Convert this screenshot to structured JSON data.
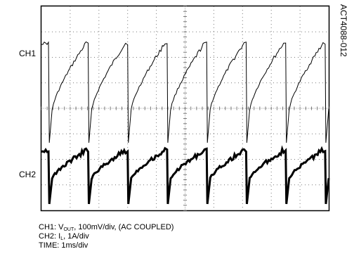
{
  "chart_data": {
    "type": "line",
    "title": "",
    "figure_id": "ACT4088-012",
    "grid": {
      "on": true,
      "divisions_x": 10,
      "divisions_y": 8,
      "style": "dotted"
    },
    "time_per_div_ms": 1,
    "period_ms": 1.375,
    "first_reset_ms": 0.25,
    "series": [
      {
        "name": "CH1",
        "description_units": "divisions (100mV/div, AC coupled)",
        "peak_div": 2.55,
        "trough_div": -1.35,
        "recover_div": -0.05,
        "color": "#000000"
      },
      {
        "name": "CH2",
        "description_units": "divisions (1A/div)",
        "peak_div": -1.65,
        "trough_div": -3.75,
        "recover_div": -2.75,
        "color": "#000000"
      }
    ],
    "channel_labels": [
      "CH1",
      "CH2"
    ],
    "caption": {
      "line1": {
        "prefix": "CH1: V",
        "sub": "OUT",
        "suffix": ", 100mV/div, (AC COUPLED)"
      },
      "line2": {
        "prefix": "CH2: I",
        "sub": "L",
        "suffix": ", 1A/div"
      },
      "line3": "TIME: 1ms/div"
    }
  }
}
